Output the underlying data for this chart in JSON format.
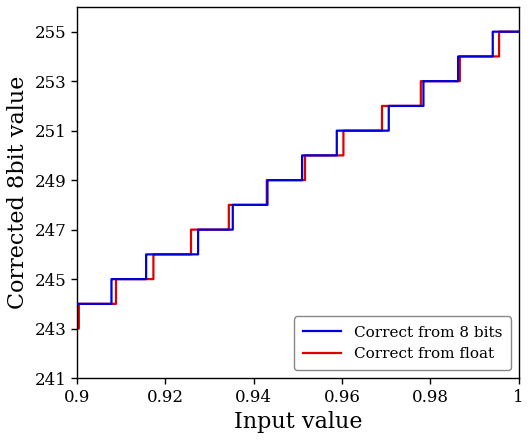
{
  "title": "",
  "xlabel": "Input value",
  "ylabel": "Corrected 8bit value",
  "xlim": [
    0.9,
    1.0
  ],
  "ylim": [
    241,
    256
  ],
  "yticks": [
    241,
    243,
    245,
    247,
    249,
    251,
    253,
    255
  ],
  "xticks": [
    0.9,
    0.92,
    0.94,
    0.96,
    0.98,
    1.0
  ],
  "blue_label": "Correct from 8 bits",
  "red_label": "Correct from float",
  "blue_color": "#0000dd",
  "red_color": "#dd0000",
  "linewidth": 1.6,
  "legend_loc": "lower right",
  "legend_fontsize": 11,
  "axis_label_fontsize": 16,
  "tick_fontsize": 12,
  "background_color": "#ffffff"
}
